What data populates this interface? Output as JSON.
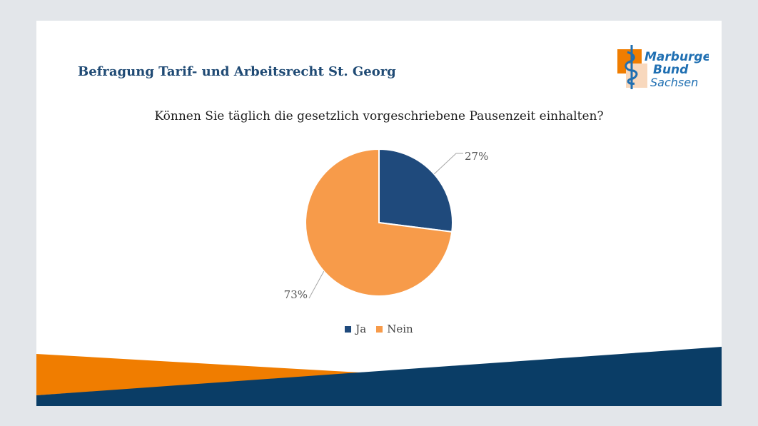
{
  "slide": {
    "title": "Befragung Tarif- und Arbeitsrecht St. Georg",
    "logo": {
      "line1": "Marburger",
      "line2": "Bund",
      "line3": "Sachsen"
    }
  },
  "colors": {
    "ja": "#1f4a7c",
    "nein": "#f79b4a",
    "title": "#1f4a74",
    "footer_orange": "#f07d00",
    "footer_navy": "#0a3d66"
  },
  "chart_data": {
    "type": "pie",
    "title": "Können Sie täglich die gesetzlich vorgeschriebene Pausenzeit einhalten?",
    "categories": [
      "Ja",
      "Nein"
    ],
    "values": [
      27,
      73
    ],
    "labels": [
      "27%",
      "73%"
    ],
    "legend": {
      "position": "bottom",
      "entries": [
        "Ja",
        "Nein"
      ]
    }
  }
}
